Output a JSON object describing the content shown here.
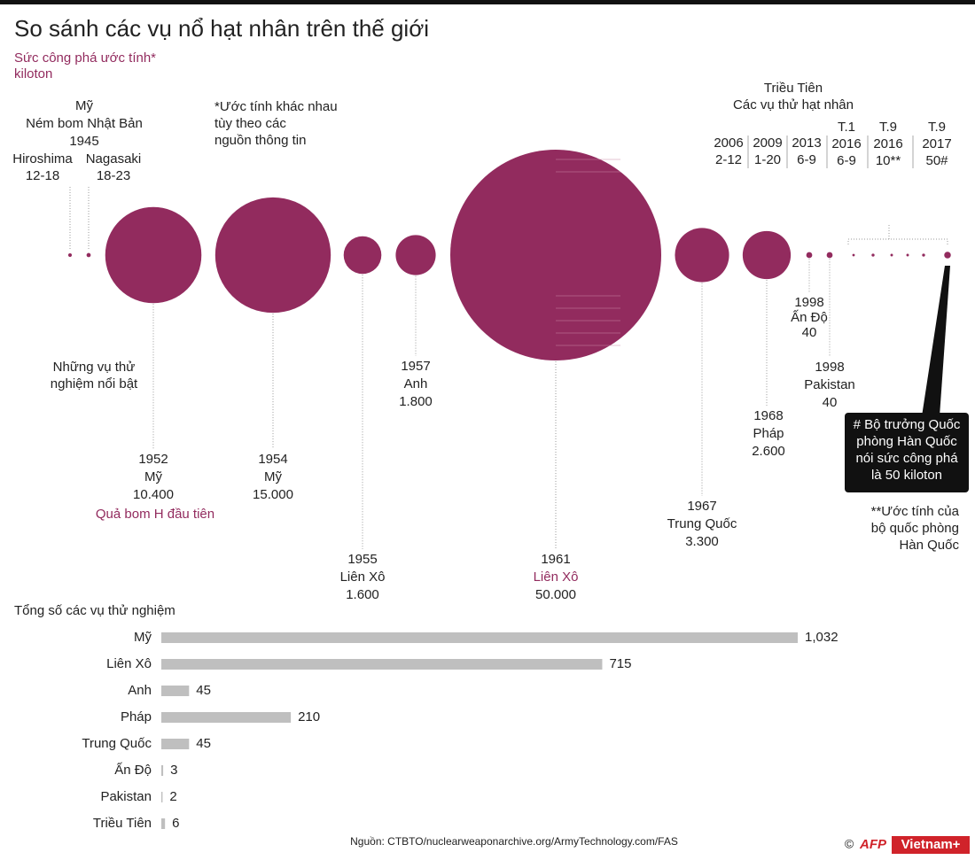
{
  "title": "So sánh các vụ nổ hạt nhân trên thế giới",
  "chart_data": [
    {
      "type": "bubble",
      "subtitle": "Sức công phá ước tính*",
      "unit": "kiloton",
      "note": [
        "*Ước tính khác nhau",
        "tùy theo các",
        "nguồn thông tin"
      ],
      "annotation": [
        "Những vụ thử",
        "nghiệm nổi bật"
      ],
      "groups": [
        [
          "Mỹ",
          "Ném bom Nhật Bản",
          "1945"
        ],
        [
          "Triều Tiên",
          "Các vụ thử hạt nhân"
        ]
      ],
      "categories": [
        "Hiroshima",
        "Nagasaki",
        "1952",
        "1954",
        "1955",
        "1957",
        "1961",
        "1967",
        "1968",
        "1998",
        "1998",
        "2006",
        "2009",
        "2013",
        "2016",
        "2016",
        "2017"
      ],
      "months": [
        null,
        null,
        null,
        null,
        null,
        null,
        null,
        null,
        null,
        null,
        null,
        null,
        null,
        null,
        "T.1",
        "T.9",
        "T.9"
      ],
      "countries": [
        null,
        null,
        "Mỹ",
        "Mỹ",
        "Liên Xô",
        "Anh",
        "Liên Xô",
        "Trung Quốc",
        "Pháp",
        "Ấn Độ",
        "Pakistan",
        null,
        null,
        null,
        null,
        null,
        null
      ],
      "values": [
        15,
        20,
        10400,
        15000,
        1600,
        1800,
        50000,
        3300,
        2600,
        40,
        40,
        7,
        10,
        7.5,
        7.5,
        10,
        50
      ],
      "value_labels": [
        "12-18",
        "18-23",
        "10.400",
        "15.000",
        "1.600",
        "1.800",
        "50.000",
        "3.300",
        "2.600",
        "40",
        "40",
        "2-12",
        "1-20",
        "6-9",
        "6-9",
        "10**",
        "50#"
      ],
      "highlight": "Quả bom H đầu tiên",
      "color": "#922b5e",
      "footnote_hash": [
        "# Bộ trưởng Quốc",
        "phòng Hàn Quốc",
        "nói sức công phá",
        "là 50 kiloton"
      ],
      "footnote_star": [
        "**Ước tính của",
        "bộ quốc phòng",
        "Hàn Quốc"
      ]
    },
    {
      "type": "bar",
      "title": "Tổng số các vụ thử nghiệm",
      "categories": [
        "Mỹ",
        "Liên Xô",
        "Anh",
        "Pháp",
        "Trung Quốc",
        "Ấn Độ",
        "Pakistan",
        "Triều Tiên"
      ],
      "values": [
        1032,
        715,
        45,
        210,
        45,
        3,
        2,
        6
      ],
      "value_labels": [
        "1,032",
        "715",
        "45",
        "210",
        "45",
        "3",
        "2",
        "6"
      ],
      "color": "#bfbfbf"
    }
  ],
  "source": "Nguồn: CTBTO/nuclearweaponarchive.org/ArmyTechnology.com/FAS",
  "credit": {
    "copyright": "©",
    "agencies": [
      "AFP",
      "Vietnam+"
    ]
  }
}
